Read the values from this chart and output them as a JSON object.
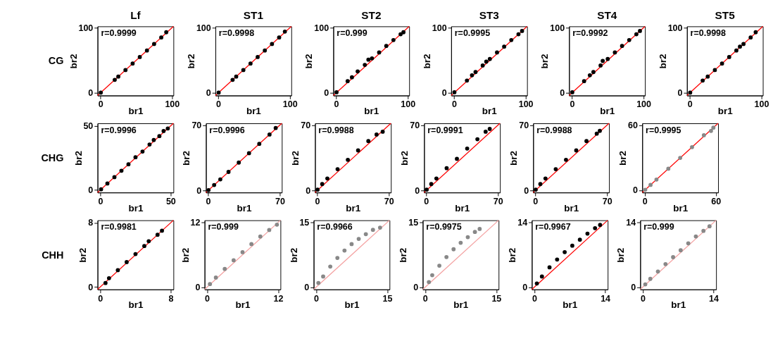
{
  "chart_data": [
    {
      "type": "scatter",
      "title": "Lf",
      "xlabel": "br1",
      "ylabel": "br2",
      "annotations": [
        "r=0.9999",
        "CG"
      ],
      "xlim": [
        -4,
        102
      ],
      "ylim": [
        -4,
        102
      ],
      "xticks": [
        0,
        100
      ],
      "yticks": [
        0,
        100
      ],
      "grid": false,
      "series": [
        {
          "color": "#000000",
          "x": [
            0.5,
            20,
            25,
            35,
            45,
            55,
            65,
            75,
            85,
            92
          ],
          "values": [
            0.5,
            20,
            25,
            35,
            45,
            55,
            65,
            75,
            85,
            93
          ]
        },
        {
          "type": "line",
          "color": "#ff0000",
          "x": [
            -4,
            102
          ],
          "values": [
            -4,
            102
          ]
        }
      ]
    },
    {
      "type": "scatter",
      "title": "ST1",
      "xlabel": "br1",
      "ylabel": "br2",
      "annotations": [
        "r=0.9998"
      ],
      "xlim": [
        -4,
        102
      ],
      "ylim": [
        -4,
        102
      ],
      "xticks": [
        0,
        100
      ],
      "yticks": [
        0,
        100
      ],
      "grid": false,
      "series": [
        {
          "color": "#000000",
          "x": [
            0.5,
            20,
            25,
            35,
            45,
            55,
            65,
            75,
            85,
            93
          ],
          "values": [
            0.5,
            20,
            25,
            35,
            45,
            55,
            65,
            75,
            85,
            94
          ]
        },
        {
          "type": "line",
          "color": "#ff0000",
          "x": [
            -4,
            102
          ],
          "values": [
            -4,
            102
          ]
        }
      ]
    },
    {
      "type": "scatter",
      "title": "ST2",
      "xlabel": "br1",
      "ylabel": "br2",
      "annotations": [
        "r=0.999"
      ],
      "xlim": [
        -4,
        102
      ],
      "ylim": [
        -4,
        102
      ],
      "xticks": [
        0,
        100
      ],
      "yticks": [
        0,
        100
      ],
      "grid": false,
      "series": [
        {
          "color": "#000000",
          "x": [
            0.5,
            16,
            22,
            30,
            40,
            45,
            50,
            60,
            70,
            80,
            90,
            94
          ],
          "values": [
            1,
            18,
            24,
            33,
            43,
            51,
            53,
            62,
            72,
            81,
            90,
            93
          ]
        },
        {
          "type": "line",
          "color": "#ff0000",
          "x": [
            -4,
            102
          ],
          "values": [
            -4,
            102
          ]
        }
      ]
    },
    {
      "type": "scatter",
      "title": "ST3",
      "xlabel": "br1",
      "ylabel": "br2",
      "annotations": [
        "r=0.9995"
      ],
      "xlim": [
        -4,
        102
      ],
      "ylim": [
        -4,
        102
      ],
      "xticks": [
        0,
        100
      ],
      "yticks": [
        0,
        100
      ],
      "grid": false,
      "series": [
        {
          "color": "#000000",
          "x": [
            0.5,
            18,
            25,
            30,
            40,
            45,
            50,
            60,
            70,
            80,
            90,
            95
          ],
          "values": [
            1,
            19,
            27,
            32,
            42,
            48,
            52,
            62,
            71,
            81,
            90,
            95
          ]
        },
        {
          "type": "line",
          "color": "#ff0000",
          "x": [
            -4,
            102
          ],
          "values": [
            -4,
            102
          ]
        }
      ]
    },
    {
      "type": "scatter",
      "title": "ST4",
      "xlabel": "br1",
      "ylabel": "br2",
      "annotations": [
        "r=0.9992"
      ],
      "xlim": [
        -4,
        102
      ],
      "ylim": [
        -4,
        102
      ],
      "xticks": [
        0,
        100
      ],
      "yticks": [
        0,
        100
      ],
      "grid": false,
      "series": [
        {
          "color": "#000000",
          "x": [
            0.5,
            17,
            25,
            30,
            40,
            43,
            50,
            60,
            70,
            80,
            90,
            95
          ],
          "values": [
            1,
            18,
            27,
            32,
            42,
            49,
            52,
            62,
            72,
            81,
            90,
            95
          ]
        },
        {
          "type": "line",
          "color": "#ff0000",
          "x": [
            -4,
            102
          ],
          "values": [
            -4,
            102
          ]
        }
      ]
    },
    {
      "type": "scatter",
      "title": "ST5",
      "xlabel": "br1",
      "ylabel": "br2",
      "annotations": [
        "r=0.9998"
      ],
      "xlim": [
        -4,
        102
      ],
      "ylim": [
        -4,
        102
      ],
      "xticks": [
        0,
        100
      ],
      "yticks": [
        0,
        100
      ],
      "grid": false,
      "series": [
        {
          "color": "#000000",
          "x": [
            0.5,
            18,
            25,
            35,
            45,
            55,
            65,
            70,
            75,
            85,
            92
          ],
          "values": [
            0.5,
            19,
            25,
            35,
            45,
            55,
            65,
            71,
            75,
            85,
            93
          ]
        },
        {
          "type": "line",
          "color": "#ff0000",
          "x": [
            -4,
            102
          ],
          "values": [
            -4,
            102
          ]
        }
      ]
    },
    {
      "type": "scatter",
      "xlabel": "br1",
      "ylabel": "br2",
      "annotations": [
        "r=0.9996",
        "CHG"
      ],
      "xlim": [
        -2,
        52
      ],
      "ylim": [
        -2,
        52
      ],
      "xticks": [
        0,
        50
      ],
      "yticks": [
        0,
        50
      ],
      "grid": false,
      "series": [
        {
          "color": "#000000",
          "x": [
            0.5,
            5,
            10,
            15,
            20,
            25,
            30,
            35,
            38,
            42,
            45,
            48
          ],
          "values": [
            0.5,
            5,
            10,
            15,
            20,
            25.5,
            30,
            35.5,
            39,
            42,
            46,
            48
          ]
        },
        {
          "type": "line",
          "color": "#ff0000",
          "x": [
            -2,
            52
          ],
          "values": [
            -2,
            52
          ]
        }
      ]
    },
    {
      "type": "scatter",
      "xlabel": "br1",
      "ylabel": "br2",
      "annotations": [
        "r=0.9996"
      ],
      "xlim": [
        -2,
        72
      ],
      "ylim": [
        -2,
        72
      ],
      "xticks": [
        0,
        70
      ],
      "yticks": [
        0,
        70
      ],
      "grid": false,
      "series": [
        {
          "color": "#000000",
          "x": [
            0.5,
            6,
            12,
            20,
            30,
            40,
            50,
            60,
            66
          ],
          "values": [
            0.5,
            6,
            12,
            20,
            30,
            40,
            50,
            60,
            67
          ]
        },
        {
          "type": "line",
          "color": "#ff0000",
          "x": [
            -2,
            72
          ],
          "values": [
            -2,
            72
          ]
        }
      ]
    },
    {
      "type": "scatter",
      "xlabel": "br1",
      "ylabel": "br2",
      "annotations": [
        "r=0.9988"
      ],
      "xlim": [
        -2,
        72
      ],
      "ylim": [
        -2,
        72
      ],
      "xticks": [
        0,
        70
      ],
      "yticks": [
        0,
        70
      ],
      "grid": false,
      "series": [
        {
          "color": "#000000",
          "x": [
            0.5,
            5,
            10,
            20,
            30,
            40,
            50,
            58,
            64
          ],
          "values": [
            1,
            7,
            13,
            23,
            33,
            43,
            53,
            60,
            63
          ]
        },
        {
          "type": "line",
          "color": "#ff0000",
          "x": [
            -2,
            72
          ],
          "values": [
            -2,
            72
          ]
        }
      ]
    },
    {
      "type": "scatter",
      "xlabel": "br1",
      "ylabel": "br2",
      "annotations": [
        "r=0.9991"
      ],
      "xlim": [
        -2,
        72
      ],
      "ylim": [
        -2,
        72
      ],
      "xticks": [
        0,
        70
      ],
      "yticks": [
        0,
        70
      ],
      "grid": false,
      "series": [
        {
          "color": "#000000",
          "x": [
            0.5,
            5,
            10,
            20,
            30,
            40,
            50,
            58,
            62
          ],
          "values": [
            1,
            7,
            13,
            24,
            34,
            45,
            55,
            63,
            66
          ]
        },
        {
          "type": "line",
          "color": "#ff0000",
          "x": [
            -2,
            72
          ],
          "values": [
            -2,
            72
          ]
        }
      ]
    },
    {
      "type": "scatter",
      "xlabel": "br1",
      "ylabel": "br2",
      "annotations": [
        "r=0.9988"
      ],
      "xlim": [
        -2,
        72
      ],
      "ylim": [
        -2,
        72
      ],
      "xticks": [
        0,
        70
      ],
      "yticks": [
        0,
        70
      ],
      "grid": false,
      "series": [
        {
          "color": "#000000",
          "x": [
            0.5,
            5,
            10,
            20,
            30,
            40,
            50,
            60,
            63
          ],
          "values": [
            1,
            7,
            13,
            23,
            33,
            43,
            53,
            61,
            64
          ]
        },
        {
          "type": "line",
          "color": "#ff0000",
          "x": [
            -2,
            72
          ],
          "values": [
            -2,
            72
          ]
        }
      ]
    },
    {
      "type": "scatter",
      "xlabel": "br1",
      "ylabel": "br2",
      "annotations": [
        "r=0.9995"
      ],
      "xlim": [
        -2,
        62
      ],
      "ylim": [
        -2,
        62
      ],
      "xticks": [
        0,
        60
      ],
      "yticks": [
        0,
        60
      ],
      "grid": false,
      "series": [
        {
          "color": "#888888",
          "x": [
            0.5,
            5,
            10,
            20,
            30,
            40,
            50,
            56,
            58
          ],
          "values": [
            0.5,
            5,
            10,
            20,
            30,
            40,
            51,
            55,
            58
          ]
        },
        {
          "type": "line",
          "color": "#ff0000",
          "x": [
            -2,
            62
          ],
          "values": [
            -2,
            62
          ]
        }
      ]
    },
    {
      "type": "scatter",
      "xlabel": "br1",
      "ylabel": "br2",
      "annotations": [
        "r=0.9981",
        "CHH"
      ],
      "xlim": [
        -0.3,
        8.3
      ],
      "ylim": [
        -0.3,
        8.3
      ],
      "xticks": [
        0,
        8
      ],
      "yticks": [
        0,
        8
      ],
      "grid": false,
      "series": [
        {
          "color": "#000000",
          "x": [
            0.6,
            1,
            2,
            3,
            4,
            5,
            5.5,
            6.5,
            7
          ],
          "values": [
            0.5,
            1.1,
            2.1,
            3.1,
            4.1,
            5.1,
            5.7,
            6.5,
            7
          ]
        },
        {
          "type": "line",
          "color": "#ff0000",
          "x": [
            -0.3,
            8.3
          ],
          "values": [
            -0.3,
            8.3
          ]
        }
      ]
    },
    {
      "type": "scatter",
      "xlabel": "br1",
      "ylabel": "br2",
      "annotations": [
        "r=0.999"
      ],
      "xlim": [
        -0.4,
        12.4
      ],
      "ylim": [
        -0.4,
        12.4
      ],
      "xticks": [
        0,
        12
      ],
      "yticks": [
        0,
        12
      ],
      "grid": false,
      "series": [
        {
          "color": "#888888",
          "x": [
            0.5,
            1.5,
            3,
            4.5,
            6,
            7.5,
            9,
            10.5,
            11.8
          ],
          "values": [
            0.6,
            1.8,
            3.4,
            5,
            6.5,
            8,
            9.4,
            10.6,
            11.6
          ]
        },
        {
          "type": "line",
          "color": "#f4a0a0",
          "x": [
            -0.4,
            12.4
          ],
          "values": [
            -0.4,
            12.4
          ]
        }
      ]
    },
    {
      "type": "scatter",
      "xlabel": "br1",
      "ylabel": "br2",
      "annotations": [
        "r=0.9966"
      ],
      "xlim": [
        -0.5,
        15.5
      ],
      "ylim": [
        -0.5,
        15.5
      ],
      "xticks": [
        0,
        15
      ],
      "yticks": [
        0,
        15
      ],
      "grid": false,
      "series": [
        {
          "color": "#888888",
          "x": [
            0.5,
            1.5,
            3,
            4.5,
            6,
            7.5,
            9,
            10.5,
            12,
            13.5
          ],
          "values": [
            1,
            2.5,
            4.8,
            6.8,
            8.5,
            10,
            11.2,
            12.3,
            13.3,
            13.8
          ]
        },
        {
          "type": "line",
          "color": "#f4a0a0",
          "x": [
            -0.5,
            15.5
          ],
          "values": [
            -0.5,
            15.5
          ]
        }
      ]
    },
    {
      "type": "scatter",
      "xlabel": "br1",
      "ylabel": "br2",
      "annotations": [
        "r=0.9975"
      ],
      "xlim": [
        -0.5,
        15.5
      ],
      "ylim": [
        -0.5,
        15.5
      ],
      "xticks": [
        0,
        15
      ],
      "yticks": [
        0,
        15
      ],
      "grid": false,
      "series": [
        {
          "color": "#888888",
          "x": [
            0.8,
            1.5,
            3,
            4.5,
            6,
            7.5,
            9,
            10.5,
            11.5
          ],
          "values": [
            1.2,
            2.8,
            5,
            7,
            8.8,
            10.3,
            11.6,
            12.8,
            13.5
          ]
        },
        {
          "type": "line",
          "color": "#f4a0a0",
          "x": [
            -0.5,
            15.5
          ],
          "values": [
            -0.5,
            15.5
          ]
        }
      ]
    },
    {
      "type": "scatter",
      "xlabel": "br1",
      "ylabel": "br2",
      "annotations": [
        "r=0.9967"
      ],
      "xlim": [
        -0.5,
        14.5
      ],
      "ylim": [
        -0.5,
        14.5
      ],
      "xticks": [
        0,
        14
      ],
      "yticks": [
        0,
        14
      ],
      "grid": false,
      "series": [
        {
          "color": "#000000",
          "x": [
            0.5,
            1.5,
            3,
            4.5,
            6,
            7.5,
            9,
            10.5,
            12,
            13
          ],
          "values": [
            0.8,
            2.3,
            4.3,
            6,
            7.6,
            9,
            10.3,
            11.6,
            12.8,
            13.5
          ]
        },
        {
          "type": "line",
          "color": "#ff0000",
          "x": [
            -0.5,
            14.5
          ],
          "values": [
            -0.5,
            14.5
          ]
        }
      ]
    },
    {
      "type": "scatter",
      "xlabel": "br1",
      "ylabel": "br2",
      "annotations": [
        "r=0.999"
      ],
      "xlim": [
        -0.5,
        14.5
      ],
      "ylim": [
        -0.5,
        14.5
      ],
      "xticks": [
        0,
        14
      ],
      "yticks": [
        0,
        14
      ],
      "grid": false,
      "series": [
        {
          "color": "#888888",
          "x": [
            0.5,
            1.5,
            3,
            4.5,
            6,
            7.5,
            9,
            10.5,
            12,
            13.2
          ],
          "values": [
            0.6,
            1.8,
            3.4,
            5,
            6.5,
            8,
            9.5,
            11,
            12.2,
            13.2
          ]
        },
        {
          "type": "line",
          "color": "#f4a0a0",
          "x": [
            -0.5,
            14.5
          ],
          "values": [
            -0.5,
            14.5
          ]
        }
      ]
    }
  ]
}
